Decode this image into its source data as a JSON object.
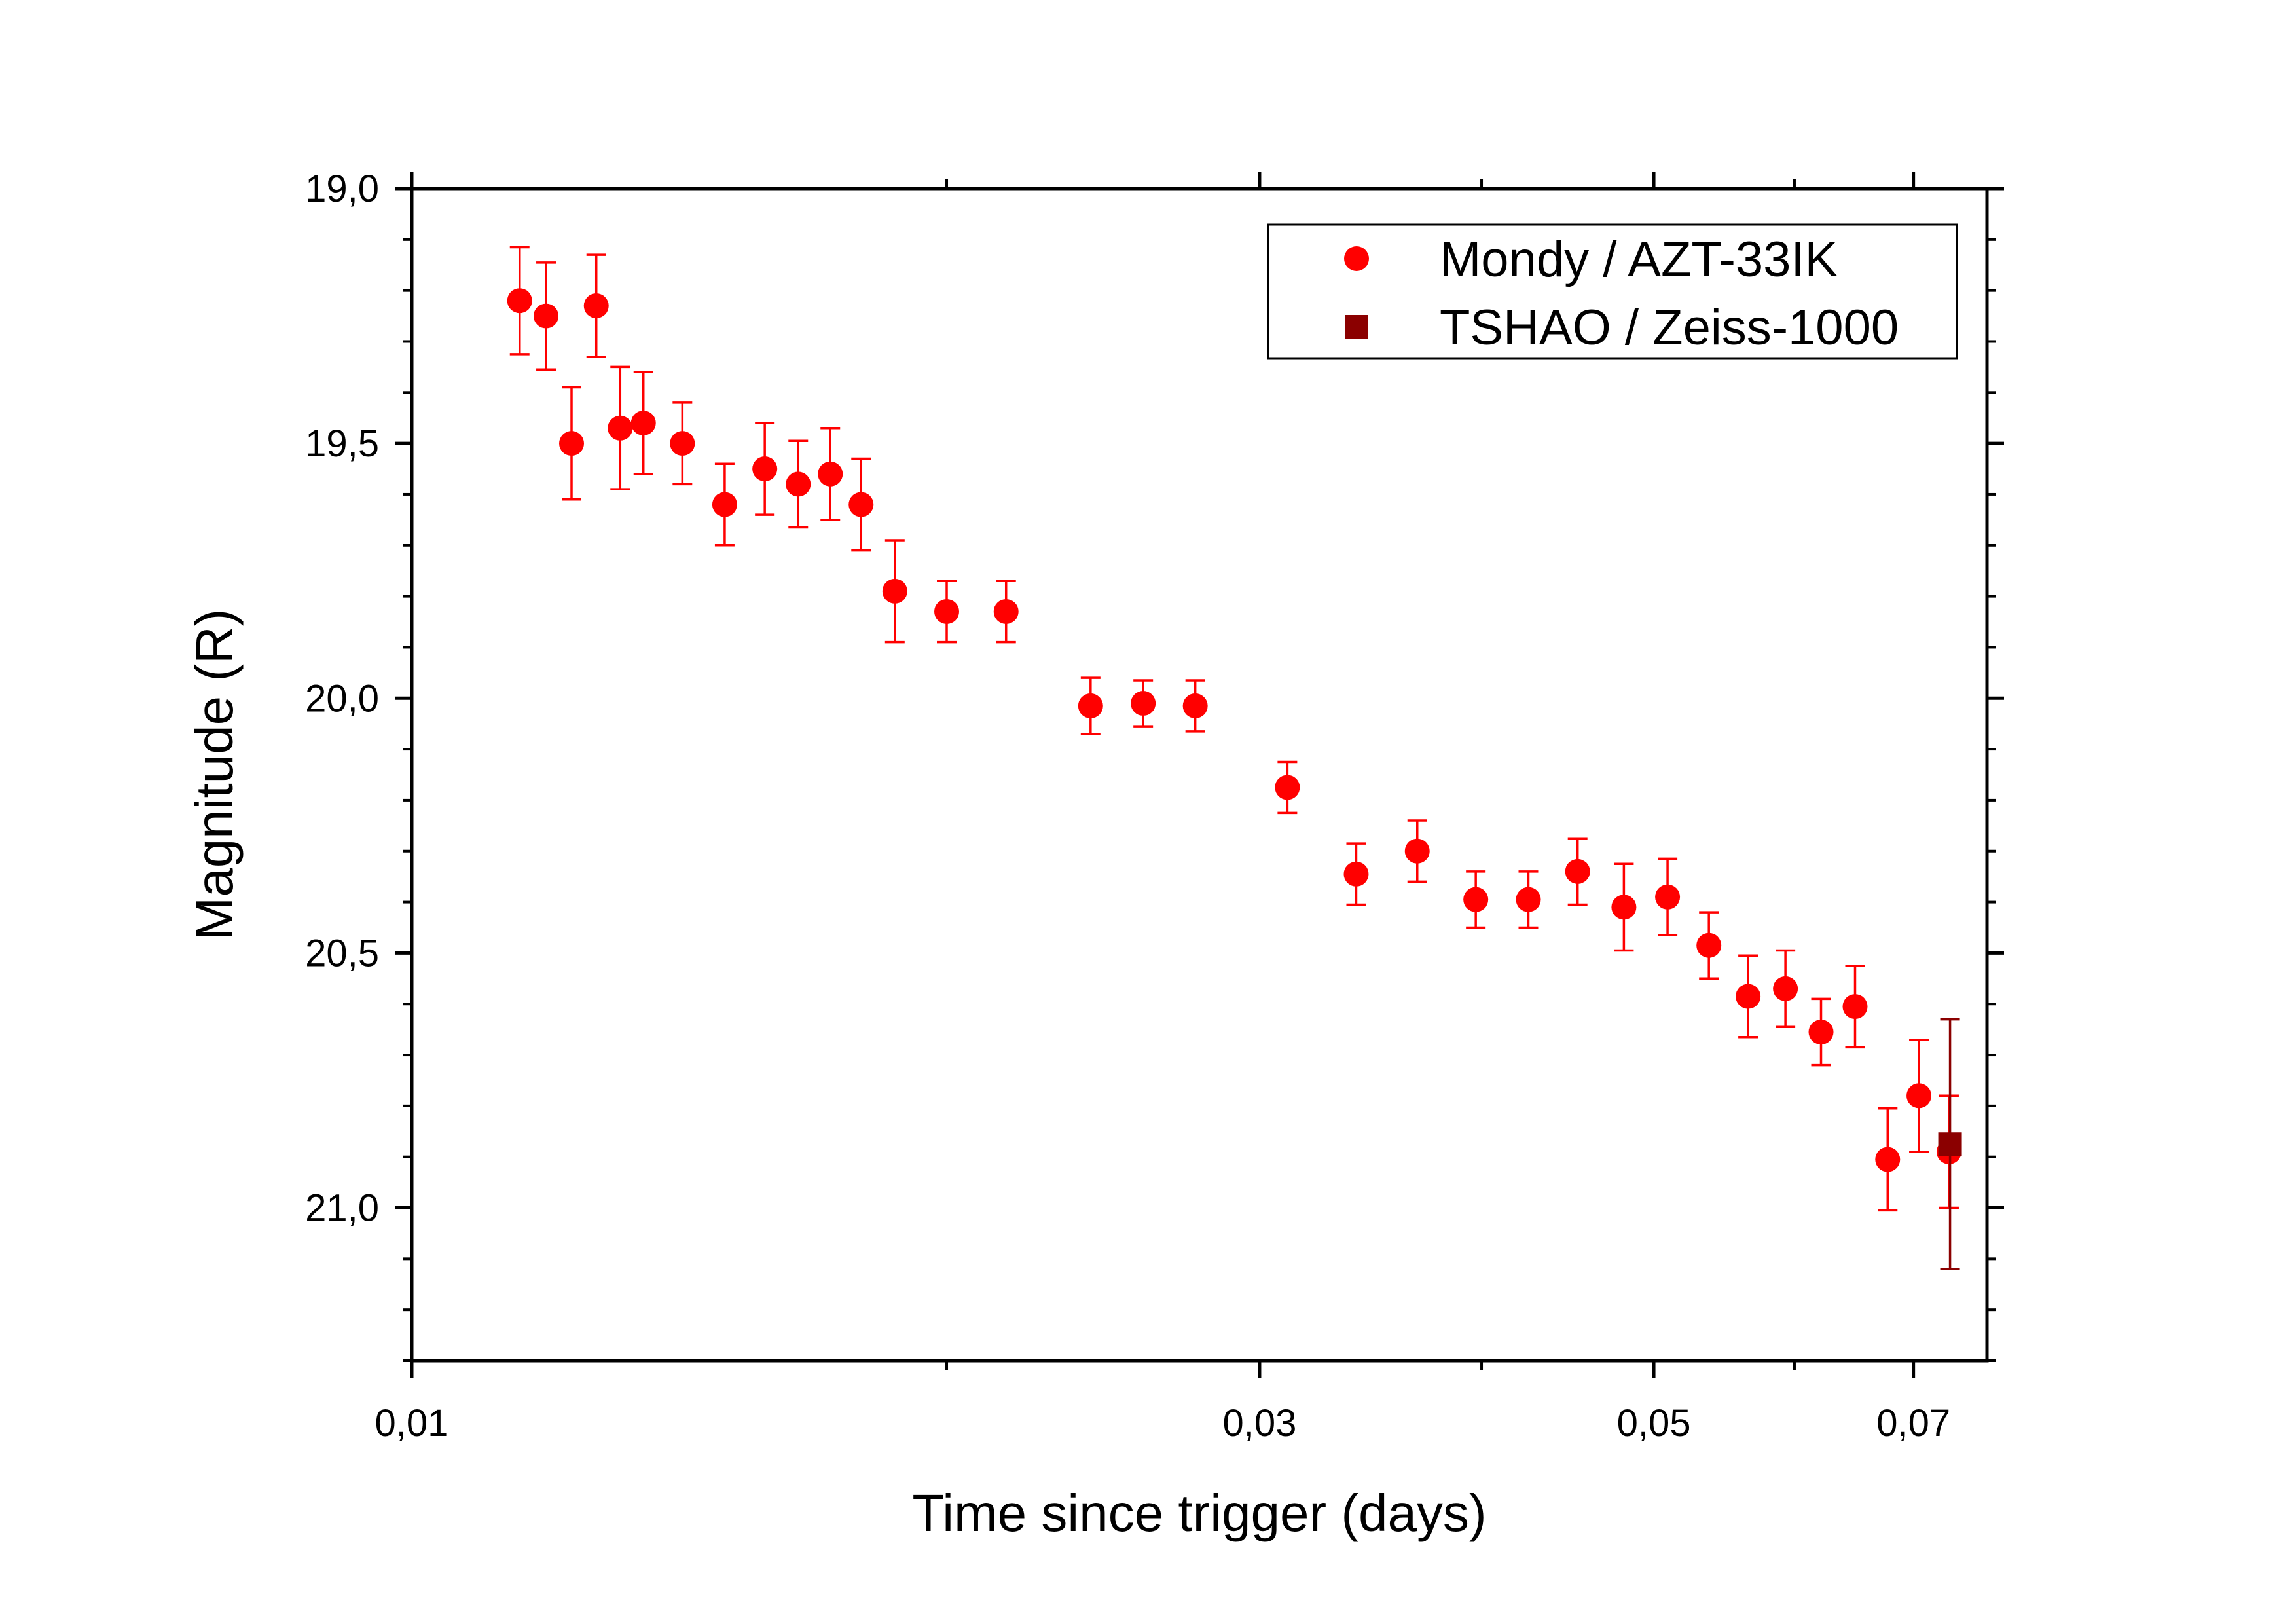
{
  "chart_data": {
    "type": "scatter",
    "title": "",
    "xlabel": "Time since trigger (days)",
    "ylabel": "Magnitude (R)",
    "x_scale": "log",
    "xlim": [
      0.01,
      0.077
    ],
    "ylim": [
      21.3,
      19.0
    ],
    "y_inverted": true,
    "grid": false,
    "legend_position": "top-right",
    "x_ticks": [
      {
        "value": 0.01,
        "label": "0,01"
      },
      {
        "value": 0.03,
        "label": "0,03"
      },
      {
        "value": 0.05,
        "label": "0,05"
      },
      {
        "value": 0.07,
        "label": "0,07"
      }
    ],
    "x_minor_ticks": [
      0.02,
      0.04,
      0.06
    ],
    "y_ticks": [
      {
        "value": 19.0,
        "label": "19,0"
      },
      {
        "value": 19.5,
        "label": "19,5"
      },
      {
        "value": 20.0,
        "label": "20,0"
      },
      {
        "value": 20.5,
        "label": "20,5"
      },
      {
        "value": 21.0,
        "label": "21,0"
      }
    ],
    "y_minor_ticks": [
      19.1,
      19.2,
      19.3,
      19.4,
      19.6,
      19.7,
      19.8,
      19.9,
      20.1,
      20.2,
      20.3,
      20.4,
      20.6,
      20.7,
      20.8,
      20.9,
      21.1,
      21.2,
      21.3
    ],
    "series": [
      {
        "name": "Mondy / AZT-33IK",
        "marker": "circle",
        "color": "#ff0000",
        "points": [
          {
            "x": 0.0115,
            "y": 19.22,
            "err": 0.105
          },
          {
            "x": 0.0119,
            "y": 19.25,
            "err": 0.105
          },
          {
            "x": 0.0123,
            "y": 19.5,
            "err": 0.11
          },
          {
            "x": 0.0127,
            "y": 19.23,
            "err": 0.1
          },
          {
            "x": 0.0131,
            "y": 19.47,
            "err": 0.12
          },
          {
            "x": 0.0135,
            "y": 19.46,
            "err": 0.1
          },
          {
            "x": 0.0142,
            "y": 19.5,
            "err": 0.08
          },
          {
            "x": 0.015,
            "y": 19.62,
            "err": 0.08
          },
          {
            "x": 0.0158,
            "y": 19.55,
            "err": 0.09
          },
          {
            "x": 0.0165,
            "y": 19.58,
            "err": 0.085
          },
          {
            "x": 0.0172,
            "y": 19.56,
            "err": 0.09
          },
          {
            "x": 0.0179,
            "y": 19.62,
            "err": 0.09
          },
          {
            "x": 0.0187,
            "y": 19.79,
            "err": 0.1
          },
          {
            "x": 0.02,
            "y": 19.83,
            "err": 0.06
          },
          {
            "x": 0.0216,
            "y": 19.83,
            "err": 0.06
          },
          {
            "x": 0.0241,
            "y": 20.015,
            "err": 0.055
          },
          {
            "x": 0.0258,
            "y": 20.01,
            "err": 0.045
          },
          {
            "x": 0.0276,
            "y": 20.015,
            "err": 0.05
          },
          {
            "x": 0.0311,
            "y": 20.175,
            "err": 0.05
          },
          {
            "x": 0.034,
            "y": 20.345,
            "err": 0.06
          },
          {
            "x": 0.0368,
            "y": 20.3,
            "err": 0.06
          },
          {
            "x": 0.0397,
            "y": 20.395,
            "err": 0.055
          },
          {
            "x": 0.0425,
            "y": 20.395,
            "err": 0.055
          },
          {
            "x": 0.0453,
            "y": 20.34,
            "err": 0.065
          },
          {
            "x": 0.0481,
            "y": 20.41,
            "err": 0.085
          },
          {
            "x": 0.0509,
            "y": 20.39,
            "err": 0.075
          },
          {
            "x": 0.0537,
            "y": 20.485,
            "err": 0.065
          },
          {
            "x": 0.0565,
            "y": 20.585,
            "err": 0.08
          },
          {
            "x": 0.0593,
            "y": 20.57,
            "err": 0.075
          },
          {
            "x": 0.0621,
            "y": 20.655,
            "err": 0.065
          },
          {
            "x": 0.0649,
            "y": 20.605,
            "err": 0.08
          },
          {
            "x": 0.0677,
            "y": 20.905,
            "err": 0.1
          },
          {
            "x": 0.0705,
            "y": 20.78,
            "err": 0.11
          },
          {
            "x": 0.0733,
            "y": 20.89,
            "err": 0.11
          }
        ]
      },
      {
        "name": "TSHAO / Zeiss-1000",
        "marker": "square",
        "color": "#8b0000",
        "points": [
          {
            "x": 0.0734,
            "y": 20.875,
            "err": 0.245
          }
        ]
      }
    ]
  }
}
